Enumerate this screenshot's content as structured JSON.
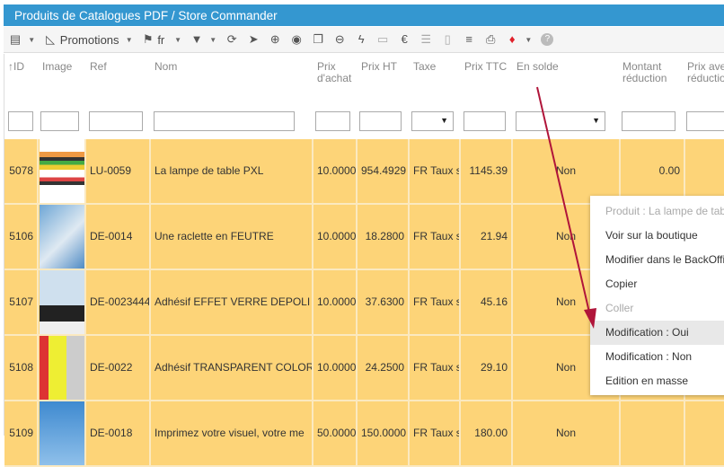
{
  "window": {
    "title": "Produits de Catalogues PDF / Store Commander"
  },
  "toolbar": {
    "promotions_label": "Promotions",
    "lang_label": "fr",
    "icons": [
      "layout-icon",
      "promotions-icon",
      "flag-icon",
      "filter-icon",
      "refresh-icon",
      "cursor-icon",
      "add-icon",
      "globe-icon",
      "copy-icon",
      "remove-icon",
      "lightning-icon",
      "folder-icon",
      "euro-icon",
      "columns-icon",
      "document-icon",
      "list-icon",
      "print-icon",
      "gem-icon",
      "help-icon"
    ]
  },
  "columns": [
    "ID",
    "Image",
    "Ref",
    "Nom",
    "Prix d'achat",
    "Prix HT",
    "Taxe",
    "Prix TTC",
    "En solde",
    "Montant réduction",
    "Prix avec réduction"
  ],
  "rows": [
    {
      "id": "5078",
      "ref": "LU-0059",
      "nom": "La lampe de table PXL",
      "achat": "10.0000",
      "ht": "954.4929",
      "taxe": "FR Taux s",
      "ttc": "1145.39",
      "solde": "Non",
      "montant": "0.00"
    },
    {
      "id": "5106",
      "ref": "DE-0014",
      "nom": "Une raclette en FEUTRE",
      "achat": "10.0000",
      "ht": "18.2800",
      "taxe": "FR Taux s",
      "ttc": "21.94",
      "solde": "Non",
      "montant": ""
    },
    {
      "id": "5107",
      "ref": "DE-0023444",
      "nom": "Adhésif EFFET VERRE DEPOLI",
      "achat": "10.0000",
      "ht": "37.6300",
      "taxe": "FR Taux s",
      "ttc": "45.16",
      "solde": "Non",
      "montant": ""
    },
    {
      "id": "5108",
      "ref": "DE-0022",
      "nom": "Adhésif TRANSPARENT COLORÉ",
      "achat": "10.0000",
      "ht": "24.2500",
      "taxe": "FR Taux s",
      "ttc": "29.10",
      "solde": "Non",
      "montant": ""
    },
    {
      "id": "5109",
      "ref": "DE-0018",
      "nom": "Imprimez votre visuel, votre me",
      "achat": "50.0000",
      "ht": "150.0000",
      "taxe": "FR Taux s",
      "ttc": "180.00",
      "solde": "Non",
      "montant": ""
    }
  ],
  "context_menu": {
    "items": [
      {
        "label": "Produit : La lampe de table PXL",
        "disabled": true
      },
      {
        "label": "Voir sur la boutique"
      },
      {
        "label": "Modifier dans le BackOffice"
      },
      {
        "label": "Copier"
      },
      {
        "label": "Coller",
        "disabled": true
      },
      {
        "label": "Modification : Oui",
        "highlighted": true
      },
      {
        "label": "Modification : Non"
      },
      {
        "label": "Edition en masse"
      }
    ]
  },
  "colors": {
    "title_bg": "#3497d0",
    "row_bg": "#fdd478",
    "arrow": "#b0153a"
  }
}
